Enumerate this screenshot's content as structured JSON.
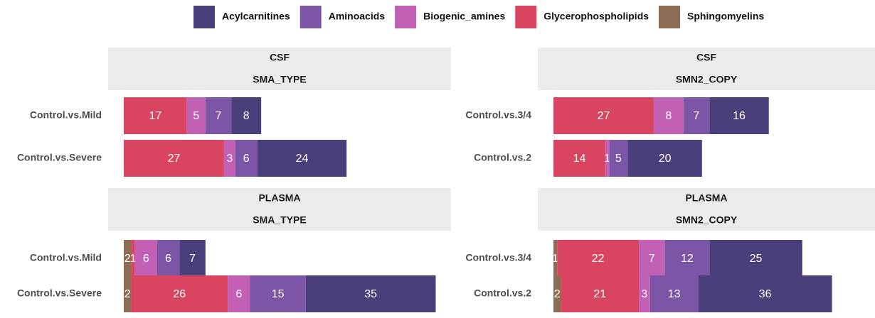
{
  "chart_data": {
    "type": "bar",
    "orientation": "horizontal",
    "stacked": true,
    "legend_position": "top",
    "series": [
      {
        "name": "Acylcarnitines",
        "color": "#4a3f7a"
      },
      {
        "name": "Aminoacids",
        "color": "#7d55a6"
      },
      {
        "name": "Biogenic_amines",
        "color": "#c260b5"
      },
      {
        "name": "Glycerophospholipids",
        "color": "#d94560"
      },
      {
        "name": "Sphingomyelins",
        "color": "#8c6d53"
      }
    ],
    "panels": [
      {
        "strip": [
          "CSF",
          "SMA_TYPE"
        ],
        "categories": [
          "Control.vs.Mild",
          "Control.vs.Severe"
        ],
        "values": [
          [
            8,
            24
          ],
          [
            7,
            6
          ],
          [
            5,
            3
          ],
          [
            17,
            27
          ],
          [
            null,
            null
          ]
        ]
      },
      {
        "strip": [
          "CSF",
          "SMN2_COPY"
        ],
        "categories": [
          "Control.vs.3/4",
          "Control.vs.2"
        ],
        "values": [
          [
            16,
            20
          ],
          [
            7,
            5
          ],
          [
            8,
            1
          ],
          [
            27,
            14
          ],
          [
            null,
            null
          ]
        ]
      },
      {
        "strip": [
          "PLASMA",
          "SMA_TYPE"
        ],
        "categories": [
          "Control.vs.Mild",
          "Control.vs.Severe"
        ],
        "values": [
          [
            7,
            35
          ],
          [
            6,
            15
          ],
          [
            6,
            6
          ],
          [
            1,
            26
          ],
          [
            2,
            2
          ]
        ]
      },
      {
        "strip": [
          "PLASMA",
          "SMN2_COPY"
        ],
        "categories": [
          "Control.vs.3/4",
          "Control.vs.2"
        ],
        "values": [
          [
            25,
            36
          ],
          [
            12,
            13
          ],
          [
            7,
            3
          ],
          [
            22,
            21
          ],
          [
            1,
            2
          ]
        ]
      }
    ]
  }
}
